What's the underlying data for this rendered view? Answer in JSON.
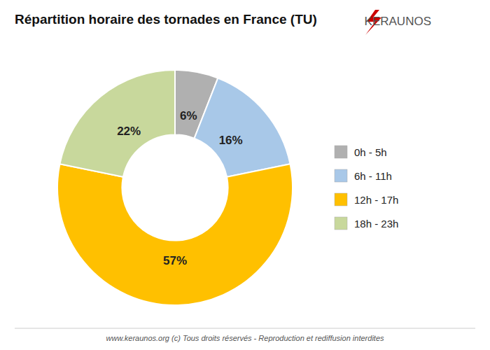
{
  "chart_data": {
    "type": "donut",
    "title": "Répartition horaire des tornades en France (TU)",
    "categories": [
      "0h - 5h",
      "6h - 11h",
      "12h - 17h",
      "18h - 23h"
    ],
    "values": [
      6,
      16,
      57,
      22
    ],
    "value_labels": [
      "6%",
      "16%",
      "57%",
      "22%"
    ],
    "colors": [
      "#b0b0b0",
      "#a8c8e8",
      "#ffc000",
      "#c8d89c"
    ],
    "data_labels": true,
    "legend": "right",
    "annotations": [
      "KERAUNOS",
      "www.keraunos.org  (c) Tous droits réservés - Reproduction et rediffusion interdites"
    ]
  }
}
